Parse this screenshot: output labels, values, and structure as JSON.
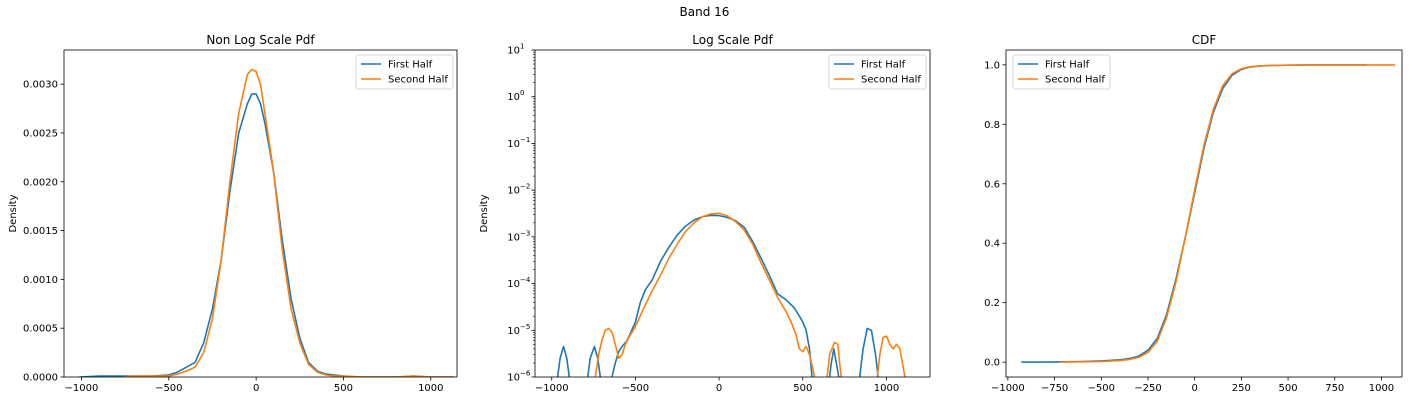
{
  "suptitle": "Band 16",
  "colors": {
    "first": "#1f77b4",
    "second": "#ff7f0e"
  },
  "chart_data": [
    {
      "type": "line",
      "title": "Non Log Scale Pdf",
      "xlabel": "",
      "ylabel": "Density",
      "xlim": [
        -1100,
        1150
      ],
      "ylim": [
        0,
        0.00335
      ],
      "xticks": [
        -1000,
        -500,
        0,
        500,
        1000
      ],
      "xtick_labels": [
        "−1000",
        "−500",
        "0",
        "500",
        "1000"
      ],
      "yticks": [
        0,
        0.0005,
        0.001,
        0.0015,
        0.002,
        0.0025,
        0.003
      ],
      "ytick_labels": [
        "0.0000",
        "0.0005",
        "0.0010",
        "0.0015",
        "0.0020",
        "0.0025",
        "0.0030"
      ],
      "grid": false,
      "legend": "top-right",
      "series": [
        {
          "name": "First Half",
          "x": [
            -1010,
            -900,
            -800,
            -700,
            -600,
            -500,
            -450,
            -400,
            -350,
            -300,
            -250,
            -200,
            -150,
            -100,
            -50,
            -25,
            0,
            25,
            50,
            100,
            150,
            200,
            250,
            300,
            350,
            400,
            450,
            500,
            600,
            700,
            800,
            900,
            1000,
            1130
          ],
          "y": [
            0.0,
            1e-05,
            1e-05,
            1e-05,
            1e-05,
            2e-05,
            5e-05,
            0.0001,
            0.00015,
            0.00035,
            0.0007,
            0.0012,
            0.0019,
            0.0025,
            0.0028,
            0.0029,
            0.0029,
            0.0028,
            0.0026,
            0.0021,
            0.0014,
            0.0008,
            0.0004,
            0.00015,
            6e-05,
            3e-05,
            2e-05,
            1e-05,
            0.0,
            0.0,
            0.0,
            1e-05,
            0.0,
            0.0
          ]
        },
        {
          "name": "Second Half",
          "x": [
            -760,
            -700,
            -600,
            -500,
            -450,
            -400,
            -350,
            -300,
            -250,
            -200,
            -150,
            -100,
            -50,
            -25,
            0,
            25,
            50,
            100,
            150,
            200,
            250,
            300,
            350,
            400,
            450,
            500,
            600,
            700,
            800,
            900,
            1000,
            1130
          ],
          "y": [
            0.0,
            1e-05,
            1e-05,
            1e-05,
            3e-05,
            6e-05,
            0.0001,
            0.00025,
            0.0006,
            0.0012,
            0.002,
            0.0027,
            0.0031,
            0.00315,
            0.00313,
            0.003,
            0.0027,
            0.0021,
            0.0013,
            0.0007,
            0.00035,
            0.00013,
            5e-05,
            2e-05,
            1e-05,
            1e-05,
            0.0,
            0.0,
            0.0,
            1e-05,
            0.0,
            0.0
          ]
        }
      ]
    },
    {
      "type": "line",
      "title": "Log Scale Pdf",
      "xlabel": "",
      "ylabel": "Density",
      "yscale": "log",
      "xlim": [
        -1100,
        1260
      ],
      "ylim": [
        1e-06,
        10
      ],
      "xticks": [
        -1000,
        -500,
        0,
        500,
        1000
      ],
      "xtick_labels": [
        "−1000",
        "−500",
        "0",
        "500",
        "1000"
      ],
      "yticks": [
        1e-06,
        1e-05,
        0.0001,
        0.001,
        0.01,
        0.1,
        1,
        10
      ],
      "ytick_labels": [
        {
          "base": "10",
          "exp": "−6"
        },
        {
          "base": "10",
          "exp": "−5"
        },
        {
          "base": "10",
          "exp": "−4"
        },
        {
          "base": "10",
          "exp": "−3"
        },
        {
          "base": "10",
          "exp": "−2"
        },
        {
          "base": "10",
          "exp": "−1"
        },
        {
          "base": "10",
          "exp": "0"
        },
        {
          "base": "10",
          "exp": "1"
        }
      ],
      "grid": false,
      "legend": "top-right",
      "series": [
        {
          "name": "First Half",
          "segments": [
            {
              "x": [
                -965,
                -950,
                -930,
                -910,
                -895
              ],
              "y": [
                1e-06,
                2.5e-06,
                4.5e-06,
                2.5e-06,
                1e-06
              ]
            },
            {
              "x": [
                -785,
                -770,
                -745,
                -725,
                -710
              ],
              "y": [
                1e-06,
                2.5e-06,
                4.5e-06,
                2.5e-06,
                1e-06
              ]
            },
            {
              "x": [
                -640,
                -620,
                -600,
                -580,
                -550,
                -500,
                -470,
                -440,
                -400,
                -350,
                -300,
                -250,
                -200,
                -150,
                -100,
                -50,
                0,
                50,
                100,
                150,
                200,
                250,
                300,
                350,
                400,
                450,
                480,
                500,
                520,
                540,
                555
              ],
              "y": [
                1e-06,
                2e-06,
                3.5e-06,
                4.5e-06,
                6e-06,
                1.5e-05,
                4e-05,
                7.5e-05,
                0.00012,
                0.0003,
                0.0006,
                0.0011,
                0.0017,
                0.0023,
                0.0027,
                0.0029,
                0.00285,
                0.0026,
                0.0022,
                0.0016,
                0.0008,
                0.00035,
                0.00015,
                6e-05,
                4.5e-05,
                3e-05,
                2e-05,
                1.5e-05,
                1e-05,
                4e-06,
                1e-06
              ]
            },
            {
              "x": [
                660,
                670,
                685,
                700,
                715
              ],
              "y": [
                1e-06,
                2e-06,
                4e-06,
                2e-06,
                1e-06
              ]
            },
            {
              "x": [
                840,
                860,
                885,
                910,
                935,
                950
              ],
              "y": [
                1e-06,
                4e-06,
                1.1e-05,
                1e-05,
                3e-06,
                1e-06
              ]
            }
          ]
        },
        {
          "name": "Second Half",
          "segments": [
            {
              "x": [
                -740,
                -720,
                -700,
                -680,
                -660,
                -640,
                -620,
                -600,
                -580,
                -560,
                -530,
                -500,
                -450,
                -400,
                -350,
                -300,
                -250,
                -200,
                -150,
                -100,
                -50,
                0,
                50,
                100,
                150,
                200,
                250,
                300,
                350,
                400,
                430,
                460,
                480,
                500,
                520,
                540,
                560,
                570
              ],
              "y": [
                1e-06,
                3e-06,
                6e-06,
                1e-05,
                1.1e-05,
                9e-06,
                5e-06,
                2.5e-06,
                3e-06,
                5e-06,
                8e-06,
                1.2e-05,
                3e-05,
                7e-05,
                0.00015,
                0.00035,
                0.0007,
                0.0013,
                0.002,
                0.0027,
                0.0031,
                0.0032,
                0.0028,
                0.0021,
                0.0014,
                0.0007,
                0.00028,
                0.00012,
                5e-05,
                2.5e-05,
                1.5e-05,
                8e-06,
                4e-06,
                3.5e-06,
                4.5e-06,
                3e-06,
                1.5e-06,
                1e-06
              ]
            },
            {
              "x": [
                645,
                660,
                690,
                710,
                720,
                730
              ],
              "y": [
                1e-06,
                3e-06,
                5.5e-06,
                5e-06,
                2e-06,
                1e-06
              ]
            },
            {
              "x": [
                945,
                960,
                980,
                1000,
                1020,
                1040,
                1060,
                1080,
                1095,
                1110
              ],
              "y": [
                1e-06,
                3e-06,
                7e-06,
                7.5e-06,
                5e-06,
                4e-06,
                5e-06,
                4e-06,
                2e-06,
                1e-06
              ]
            }
          ]
        }
      ]
    },
    {
      "type": "line",
      "title": "CDF",
      "xlabel": "",
      "ylabel": "",
      "xlim": [
        -1010,
        1110
      ],
      "ylim": [
        -0.05,
        1.05
      ],
      "xticks": [
        -1000,
        -750,
        -500,
        -250,
        0,
        250,
        500,
        750,
        1000
      ],
      "xtick_labels": [
        "−1000",
        "−750",
        "−500",
        "−250",
        "0",
        "250",
        "500",
        "750",
        "1000"
      ],
      "yticks": [
        0,
        0.2,
        0.4,
        0.6,
        0.8,
        1.0
      ],
      "ytick_labels": [
        "0.0",
        "0.2",
        "0.4",
        "0.6",
        "0.8",
        "1.0"
      ],
      "grid": false,
      "legend": "top-left",
      "series": [
        {
          "name": "First Half",
          "x": [
            -925,
            -800,
            -700,
            -600,
            -500,
            -400,
            -350,
            -300,
            -250,
            -200,
            -150,
            -100,
            -50,
            0,
            50,
            100,
            150,
            200,
            250,
            300,
            350,
            400,
            500,
            600,
            700,
            800,
            920
          ],
          "y": [
            0.0,
            0.0,
            0.001,
            0.002,
            0.004,
            0.008,
            0.012,
            0.02,
            0.04,
            0.08,
            0.16,
            0.28,
            0.42,
            0.57,
            0.72,
            0.84,
            0.92,
            0.965,
            0.985,
            0.993,
            0.996,
            0.998,
            0.999,
            1.0,
            1.0,
            1.0,
            1.0
          ]
        },
        {
          "name": "Second Half",
          "x": [
            -715,
            -600,
            -500,
            -400,
            -350,
            -300,
            -250,
            -200,
            -150,
            -100,
            -50,
            0,
            50,
            100,
            150,
            200,
            250,
            300,
            350,
            400,
            500,
            600,
            700,
            800,
            900,
            1000,
            1070
          ],
          "y": [
            0.0,
            0.001,
            0.002,
            0.005,
            0.009,
            0.016,
            0.033,
            0.07,
            0.15,
            0.27,
            0.42,
            0.58,
            0.73,
            0.85,
            0.93,
            0.97,
            0.987,
            0.994,
            0.997,
            0.998,
            0.999,
            1.0,
            1.0,
            1.0,
            1.0,
            1.0,
            1.0
          ]
        }
      ]
    }
  ]
}
